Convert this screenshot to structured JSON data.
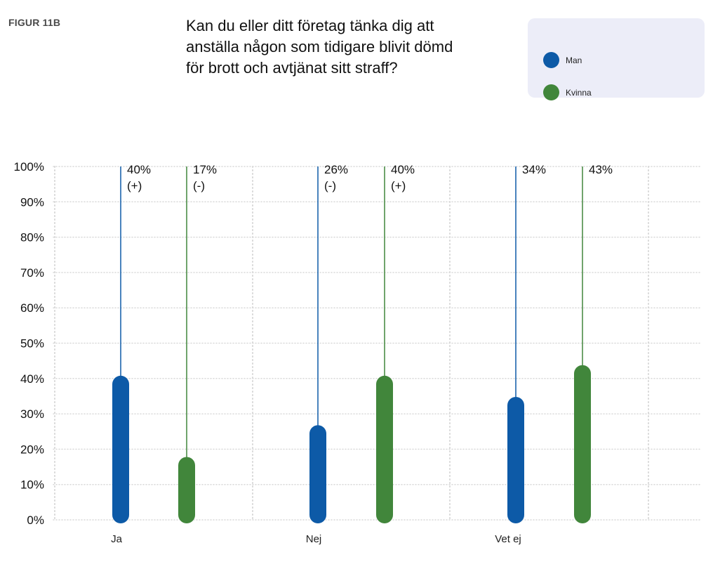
{
  "figure_label": "FIGUR 11B",
  "title_lines": [
    "Kan du eller ditt företag tänka dig att",
    "anställa någon som tidigare blivit dömd",
    "för brott och avtjänat sitt straff?"
  ],
  "legend": [
    {
      "label": "Man",
      "color": "#0d5aa7"
    },
    {
      "label": "Kvinna",
      "color": "#41863b"
    }
  ],
  "colors": {
    "man": "#0d5aa7",
    "kvinna": "#41863b",
    "grid": "#d9d9d9"
  },
  "chart_data": {
    "type": "bar",
    "categories": [
      "Ja",
      "Nej",
      "Vet ej"
    ],
    "series": [
      {
        "name": "Man",
        "values": [
          40,
          26,
          34
        ],
        "labels": [
          "40%",
          "26%",
          "34%"
        ],
        "marks": [
          "(+)",
          "(-)",
          ""
        ]
      },
      {
        "name": "Kvinna",
        "values": [
          17,
          40,
          43
        ],
        "labels": [
          "17%",
          "40%",
          "43%"
        ],
        "marks": [
          "(-)",
          "(+)",
          ""
        ]
      }
    ],
    "y_ticks": [
      "0%",
      "10%",
      "20%",
      "30%",
      "40%",
      "50%",
      "60%",
      "70%",
      "80%",
      "90%",
      "100%"
    ],
    "ylim": [
      0,
      100
    ],
    "grid": true,
    "legend_position": "top-right",
    "xlabel": "",
    "ylabel": ""
  }
}
